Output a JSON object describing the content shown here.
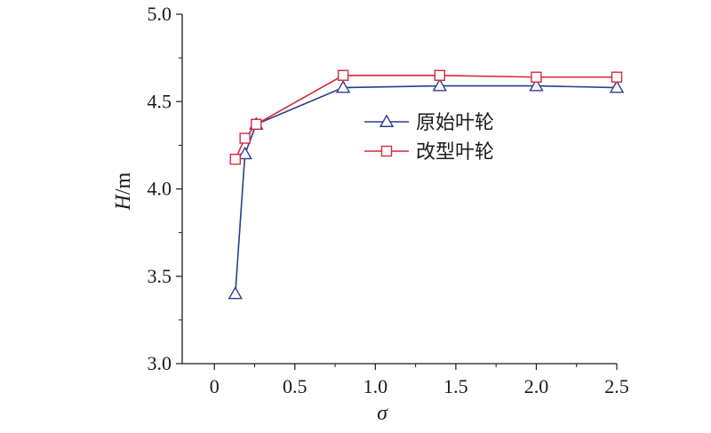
{
  "chart_data": {
    "type": "line",
    "title": "",
    "xlabel": "σ",
    "ylabel_var": "H",
    "ylabel_unit": "/m",
    "xlim": [
      -0.2,
      2.5
    ],
    "ylim": [
      3.0,
      5.0
    ],
    "xticks": [
      0,
      0.5,
      1.0,
      1.5,
      2.0,
      2.5
    ],
    "xtick_labels": [
      "0",
      "0.5",
      "1.0",
      "1.5",
      "2.0",
      "2.5"
    ],
    "yticks": [
      3.0,
      3.5,
      4.0,
      4.5,
      5.0
    ],
    "ytick_labels": [
      "3.0",
      "3.5",
      "4.0",
      "4.5",
      "5.0"
    ],
    "grid": false,
    "legend_position": "right-center",
    "series": [
      {
        "name": "原始叶轮",
        "color": "#2b3d8f",
        "marker": "triangle",
        "x": [
          0.13,
          0.19,
          0.26,
          0.8,
          1.4,
          2.0,
          2.5
        ],
        "y": [
          3.4,
          4.2,
          4.37,
          4.58,
          4.59,
          4.59,
          4.58
        ]
      },
      {
        "name": "改型叶轮",
        "color": "#d8283a",
        "marker": "square",
        "x": [
          0.13,
          0.19,
          0.26,
          0.8,
          1.4,
          2.0,
          2.5
        ],
        "y": [
          4.17,
          4.29,
          4.37,
          4.65,
          4.65,
          4.64,
          4.64
        ]
      }
    ]
  }
}
